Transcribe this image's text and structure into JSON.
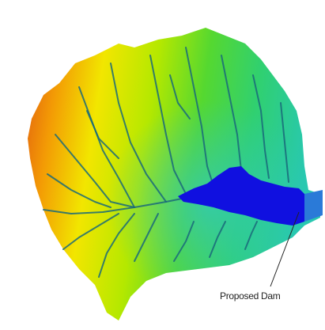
{
  "annotations": {
    "dam_label": "Proposed Dam"
  }
}
